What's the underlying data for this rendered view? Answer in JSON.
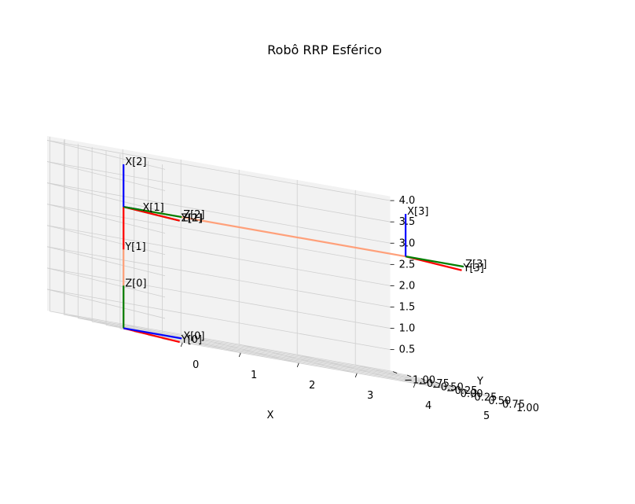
{
  "chart_data": {
    "type": "line3d",
    "title": "Robô RRP Esférico",
    "xlabel": "X",
    "ylabel": "Y",
    "zlabel": "",
    "xlim": [
      -0.3,
      5.6
    ],
    "ylim": [
      -1.05,
      1.05
    ],
    "zlim": [
      0.0,
      4.1
    ],
    "x_ticks": [
      "0",
      "1",
      "2",
      "3",
      "4",
      "5"
    ],
    "y_ticks": [
      "−1.00",
      "−0.75",
      "−0.50",
      "−0.25",
      "0.00",
      "0.25",
      "0.50",
      "0.75",
      "1.00"
    ],
    "z_ticks": [
      "0.5",
      "1.0",
      "1.5",
      "2.0",
      "2.5",
      "3.0",
      "3.5",
      "4.0"
    ],
    "grid": true,
    "colors": {
      "x_axis": "#0000ff",
      "y_axis": "#ff0000",
      "z_axis": "#008000",
      "link": "#ffa07a",
      "pane_side": "#ececec",
      "pane_back": "#f2f2f2",
      "pane_floor": "#f5f5f5",
      "gridline": "#cfcfcf"
    },
    "frames": [
      {
        "label_x": "X[0]",
        "label_y": "Y[0]",
        "label_z": "Z[0]"
      },
      {
        "label_x": "X[1]",
        "label_y": "Y[1]",
        "label_z": "Z[1]"
      },
      {
        "label_x": "X[2]",
        "label_y": "Y[2]",
        "label_z": "Z[2]"
      },
      {
        "label_x": "X[3]",
        "label_y": "Y[3]",
        "label_z": "Z[3]"
      }
    ]
  }
}
